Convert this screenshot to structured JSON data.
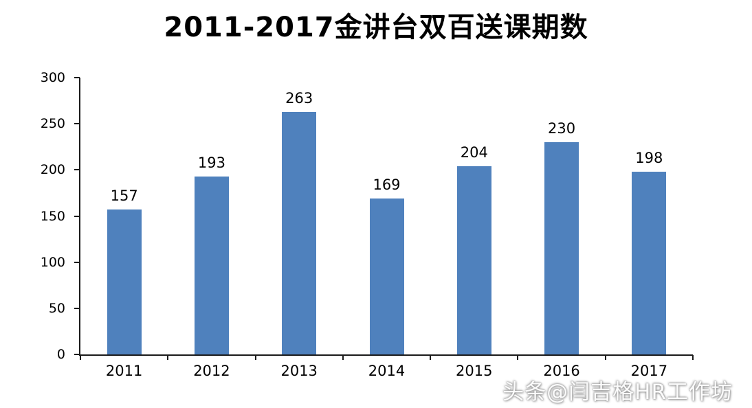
{
  "chart_data": {
    "type": "bar",
    "title": "2011-2017金讲台双百送课期数",
    "categories": [
      "2011",
      "2012",
      "2013",
      "2014",
      "2015",
      "2016",
      "2017"
    ],
    "values": [
      157,
      193,
      263,
      169,
      204,
      230,
      198
    ],
    "xlabel": "",
    "ylabel": "",
    "ylim": [
      0,
      300
    ],
    "yticks": [
      0,
      50,
      100,
      150,
      200,
      250,
      300
    ],
    "grid": false,
    "legend": false,
    "bar_color": "#4F81BD",
    "axis_color": "#1a1a1a"
  },
  "watermark": {
    "text": "头条@闫吉格HR工作坊"
  }
}
